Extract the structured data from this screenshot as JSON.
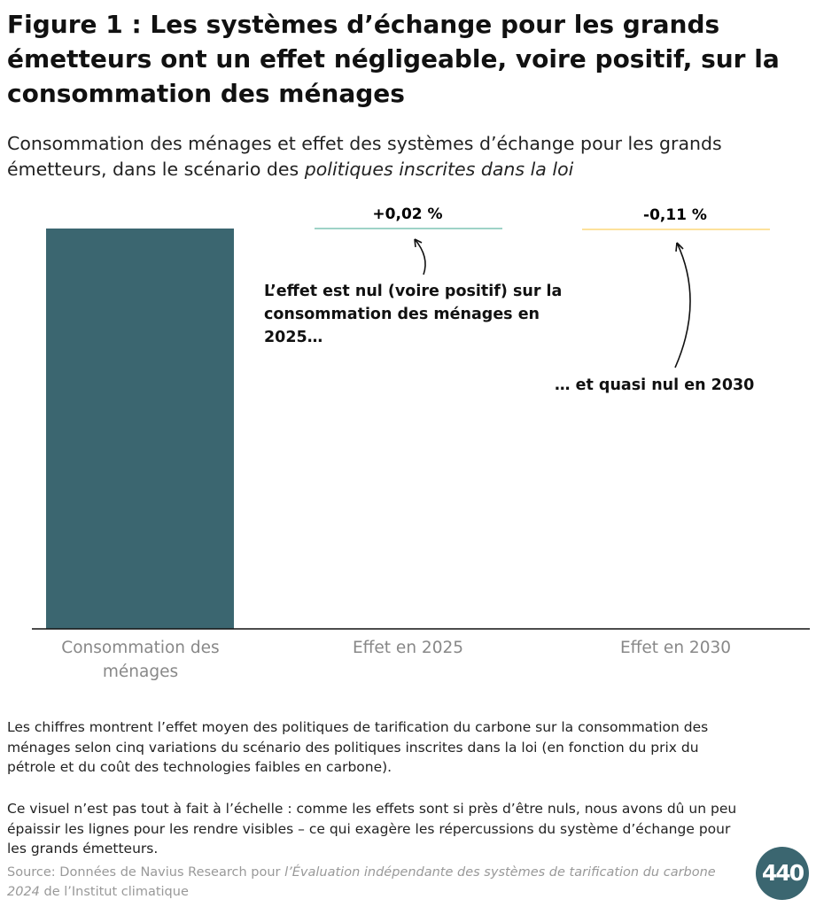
{
  "title": "Figure 1 : Les systèmes d’échange pour les grands émetteurs ont un effet négligeable, voire positif, sur la consommation des ménages",
  "subtitle_plain": "Consommation des ménages et effet des systèmes d’échange pour les grands émetteurs, dans le scénario des ",
  "subtitle_italic": "politiques inscrites dans la loi",
  "chart_data": {
    "type": "bar",
    "categories": [
      "Consommation des ménages",
      "Effet en 2025",
      "Effet en 2030"
    ],
    "data_labels": [
      "",
      "+0,02 %",
      "-0,11 %"
    ],
    "effects_percent": [
      0.02,
      -0.11
    ],
    "colors": [
      "#3b6670",
      "#9fd3c7",
      "#fde29b"
    ],
    "grid": false,
    "annotations": [
      "L’effet est nul (voire positif) sur la consommation des ménages en 2025…",
      "… et quasi nul en 2030"
    ]
  },
  "notes": [
    "Les chiffres montrent l’effet moyen des politiques de tarification du carbone sur la consommation des ménages selon cinq variations du scénario des politiques inscrites dans la loi (en fonction du prix du pétrole et du coût des technologies faibles en carbone).",
    "Ce visuel n’est pas tout à fait à l’échelle : comme les effets sont si près d’être nuls, nous avons dû un peu épaissir les lignes pour les rendre visibles – ce qui exagère les répercussions du système d’échange pour les grands émetteurs."
  ],
  "source": {
    "prefix": "Source: Données de Navius Research pour ",
    "italic": "l’Évaluation indépendante des systèmes de tarification du carbone 2024",
    "suffix": " de l’Institut climatique"
  },
  "logo": "440"
}
